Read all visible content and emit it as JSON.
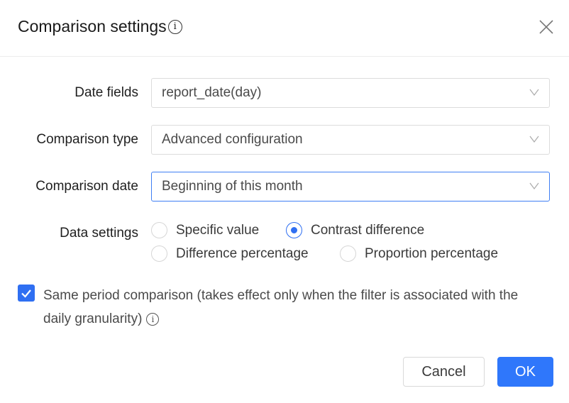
{
  "dialog": {
    "title": "Comparison settings",
    "title_info_icon": "info-circle-icon",
    "close_icon": "close-icon"
  },
  "form": {
    "date_fields": {
      "label": "Date fields",
      "value": "report_date(day)"
    },
    "comparison_type": {
      "label": "Comparison type",
      "value": "Advanced configuration"
    },
    "comparison_date": {
      "label": "Comparison date",
      "value": "Beginning of this month"
    },
    "data_settings": {
      "label": "Data settings",
      "options": [
        {
          "label": "Specific value",
          "selected": false
        },
        {
          "label": "Contrast difference",
          "selected": true
        },
        {
          "label": "Difference percentage",
          "selected": false
        },
        {
          "label": "Proportion percentage",
          "selected": false
        }
      ]
    },
    "same_period": {
      "checked": true,
      "label": "Same period comparison (takes effect only when the filter is associated with the daily granularity)"
    }
  },
  "footer": {
    "cancel_label": "Cancel",
    "ok_label": "OK"
  },
  "colors": {
    "accent": "#2f77fb"
  }
}
